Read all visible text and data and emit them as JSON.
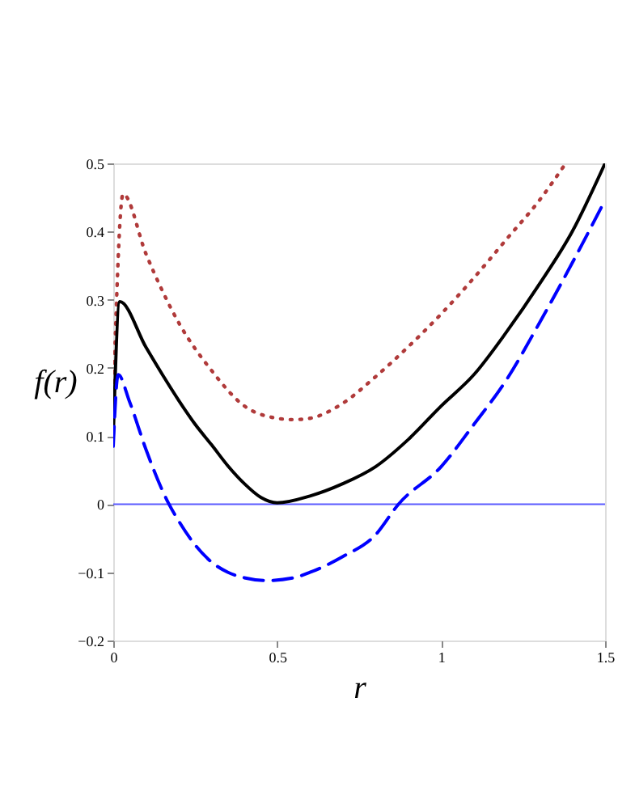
{
  "chart_data": {
    "type": "line",
    "xlabel": "r",
    "ylabel": "f(r)",
    "xlim": [
      0,
      1.5
    ],
    "xticks": [
      0,
      0.5,
      1,
      1.5
    ],
    "ylim": [
      -0.2,
      0.5
    ],
    "yticks": [
      -0.2,
      -0.1,
      0,
      0.1,
      0.2,
      0.3,
      0.4,
      0.5
    ],
    "grid": false,
    "series": [
      {
        "color": "#b03a3a",
        "line_style": "dotted",
        "x": [
          0,
          0.03,
          0.1,
          0.2,
          0.3,
          0.4,
          0.5,
          0.55,
          0.6,
          0.7,
          0.8,
          0.9,
          1.0,
          1.1,
          1.2,
          1.3,
          1.38
        ],
        "values": [
          0.15,
          0.455,
          0.367,
          0.266,
          0.196,
          0.144,
          0.126,
          0.124,
          0.126,
          0.148,
          0.187,
          0.231,
          0.279,
          0.332,
          0.389,
          0.446,
          0.5
        ]
      },
      {
        "color": "#000000",
        "line_style": "solid",
        "x": [
          0,
          0.02,
          0.1,
          0.15,
          0.2,
          0.25,
          0.3,
          0.35,
          0.4,
          0.45,
          0.5,
          0.6,
          0.7,
          0.8,
          0.9,
          1.0,
          1.1,
          1.2,
          1.3,
          1.4,
          1.5
        ],
        "values": [
          0.1,
          0.297,
          0.23,
          0.19,
          0.152,
          0.117,
          0.087,
          0.056,
          0.03,
          0.01,
          0.002,
          0.012,
          0.03,
          0.055,
          0.095,
          0.144,
          0.19,
          0.253,
          0.323,
          0.4,
          0.5
        ]
      },
      {
        "color": "#0000ff",
        "line_style": "dashed",
        "x": [
          0,
          0.015,
          0.05,
          0.1,
          0.15,
          0.17,
          0.2,
          0.25,
          0.3,
          0.35,
          0.4,
          0.47,
          0.55,
          0.6,
          0.7,
          0.8,
          0.87,
          1.0,
          1.1,
          1.2,
          1.3,
          1.4,
          1.5
        ],
        "values": [
          0.085,
          0.19,
          0.15,
          0.08,
          0.02,
          0,
          -0.025,
          -0.06,
          -0.085,
          -0.1,
          -0.108,
          -0.112,
          -0.108,
          -0.1,
          -0.077,
          -0.045,
          0,
          0.055,
          0.117,
          0.183,
          0.266,
          0.354,
          0.446
        ]
      }
    ],
    "ref_lines": [
      {
        "axis": "y",
        "value": 0,
        "color": "#5a5aff"
      }
    ]
  }
}
